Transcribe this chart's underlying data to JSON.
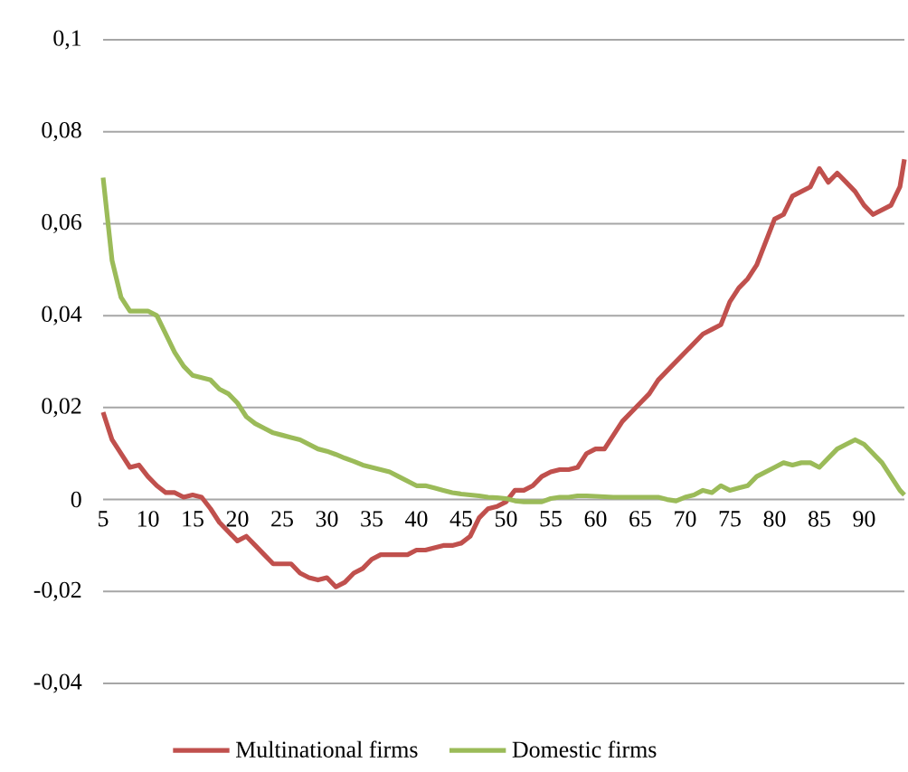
{
  "chart_data": {
    "type": "line",
    "x": [
      5,
      6,
      7,
      8,
      9,
      10,
      11,
      12,
      13,
      14,
      15,
      16,
      17,
      18,
      19,
      20,
      21,
      22,
      23,
      24,
      25,
      26,
      27,
      28,
      29,
      30,
      31,
      32,
      33,
      34,
      35,
      36,
      37,
      38,
      39,
      40,
      41,
      42,
      43,
      44,
      45,
      46,
      47,
      48,
      49,
      50,
      51,
      52,
      53,
      54,
      55,
      56,
      57,
      58,
      59,
      60,
      61,
      62,
      63,
      64,
      65,
      66,
      67,
      68,
      69,
      70,
      71,
      72,
      73,
      74,
      75,
      76,
      77,
      78,
      79,
      80,
      81,
      82,
      83,
      84,
      85,
      86,
      87,
      88,
      89,
      90,
      91,
      92,
      93,
      94,
      94.5
    ],
    "series": [
      {
        "name": "Multinational firms",
        "color": "#c0504d",
        "values": [
          0.019,
          0.013,
          0.01,
          0.007,
          0.0075,
          0.005,
          0.003,
          0.0015,
          0.0015,
          0.0005,
          0.001,
          0.0005,
          -0.002,
          -0.005,
          -0.007,
          -0.009,
          -0.008,
          -0.01,
          -0.012,
          -0.014,
          -0.014,
          -0.014,
          -0.016,
          -0.017,
          -0.0175,
          -0.017,
          -0.019,
          -0.018,
          -0.016,
          -0.015,
          -0.013,
          -0.012,
          -0.012,
          -0.012,
          -0.012,
          -0.011,
          -0.011,
          -0.0105,
          -0.01,
          -0.01,
          -0.0095,
          -0.008,
          -0.004,
          -0.002,
          -0.0015,
          -0.0005,
          0.002,
          0.002,
          0.003,
          0.005,
          0.006,
          0.0065,
          0.0065,
          0.007,
          0.01,
          0.011,
          0.011,
          0.014,
          0.017,
          0.019,
          0.021,
          0.023,
          0.026,
          0.028,
          0.03,
          0.032,
          0.034,
          0.036,
          0.037,
          0.038,
          0.043,
          0.046,
          0.048,
          0.051,
          0.056,
          0.061,
          0.062,
          0.066,
          0.067,
          0.068,
          0.072,
          0.069,
          0.071,
          0.069,
          0.067,
          0.064,
          0.062,
          0.063,
          0.064,
          0.068,
          0.074
        ]
      },
      {
        "name": "Domestic firms",
        "color": "#9bbb59",
        "values": [
          0.07,
          0.052,
          0.044,
          0.041,
          0.041,
          0.041,
          0.04,
          0.036,
          0.032,
          0.029,
          0.027,
          0.0265,
          0.026,
          0.024,
          0.023,
          0.021,
          0.018,
          0.0165,
          0.0155,
          0.0145,
          0.014,
          0.0135,
          0.013,
          0.012,
          0.011,
          0.0105,
          0.0098,
          0.009,
          0.0083,
          0.0075,
          0.007,
          0.0065,
          0.006,
          0.005,
          0.004,
          0.003,
          0.003,
          0.0025,
          0.002,
          0.0015,
          0.0012,
          0.001,
          0.0008,
          0.0005,
          0.0004,
          0.0002,
          -0.0003,
          -0.0005,
          -0.0005,
          -0.0005,
          0.0002,
          0.0005,
          0.0005,
          0.0008,
          0.0008,
          0.0007,
          0.0006,
          0.0005,
          0.0005,
          0.0005,
          0.0005,
          0.0005,
          0.0005,
          0,
          -0.0003,
          0.0005,
          0.001,
          0.002,
          0.0015,
          0.003,
          0.002,
          0.0025,
          0.003,
          0.005,
          0.006,
          0.007,
          0.008,
          0.0075,
          0.008,
          0.008,
          0.007,
          0.009,
          0.011,
          0.012,
          0.013,
          0.012,
          0.01,
          0.008,
          0.005,
          0.002,
          0.001
        ]
      }
    ],
    "xlim": [
      5,
      94.5
    ],
    "xticks": [
      5,
      10,
      15,
      20,
      25,
      30,
      35,
      40,
      45,
      50,
      55,
      60,
      65,
      70,
      75,
      80,
      85,
      90
    ],
    "ylim": [
      -0.04,
      0.1
    ],
    "yticks": [
      {
        "value": -0.04,
        "label": "-0,04"
      },
      {
        "value": -0.02,
        "label": "-0,02"
      },
      {
        "value": 0,
        "label": "0"
      },
      {
        "value": 0.02,
        "label": "0,02"
      },
      {
        "value": 0.04,
        "label": "0,04"
      },
      {
        "value": 0.06,
        "label": "0,06"
      },
      {
        "value": 0.08,
        "label": "0,08"
      },
      {
        "value": 0.1,
        "label": "0,1"
      }
    ],
    "grid": "y",
    "legend": "bottom",
    "marker": "none",
    "line_style": "solid"
  }
}
